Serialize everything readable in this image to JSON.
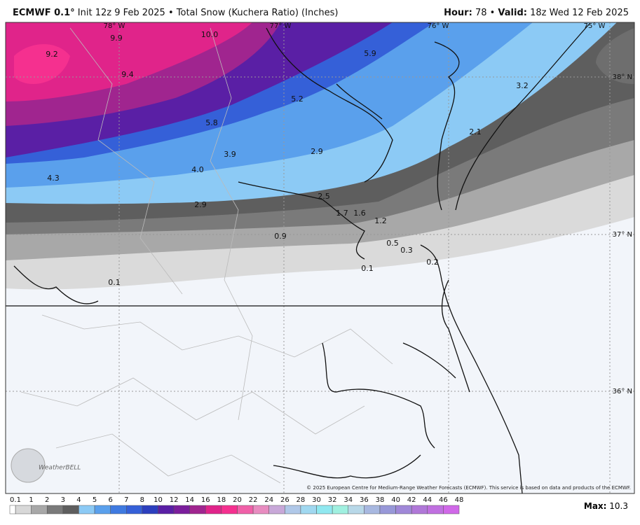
{
  "header": {
    "model": "ECMWF 0.1°",
    "title": "Init 12z 9 Feb 2025 • Total Snow (Kuchera Ratio) (Inches)",
    "hour_label": "Hour:",
    "hour": "78 •",
    "valid_label": "Valid:",
    "valid": "18z Wed 12 Feb 2025"
  },
  "map": {
    "values": [
      "9.9",
      "10.0",
      "9.2",
      "9.4",
      "5.9",
      "5.2",
      "5.8",
      "3.2",
      "2.1",
      "3.9",
      "2.9",
      "4.0",
      "4.3",
      "2.5",
      "1.7",
      "1.6",
      "1.2",
      "2.9",
      "0.9",
      "0.5",
      "0.3",
      "0.1",
      "0.2",
      "0.1"
    ],
    "grid_labels": [
      "78° W",
      "77° W",
      "76° W",
      "75° W",
      "38° N",
      "37° N",
      "36° N"
    ],
    "logo": "WeatherBELL",
    "credit": "© 2025 European Centre for Medium-Range Weather Forecasts (ECMWF). This service is based on data and products of the ECMWF."
  },
  "legend": {
    "ticks": [
      "0.1",
      "1",
      "2",
      "3",
      "4",
      "5",
      "6",
      "7",
      "8",
      "10",
      "12",
      "14",
      "16",
      "18",
      "20",
      "22",
      "24",
      "26",
      "28",
      "30",
      "32",
      "34",
      "36",
      "38",
      "40",
      "42",
      "44",
      "46",
      "48"
    ]
  },
  "footer": {
    "max_label": "Max:",
    "max_value": "10.3"
  }
}
